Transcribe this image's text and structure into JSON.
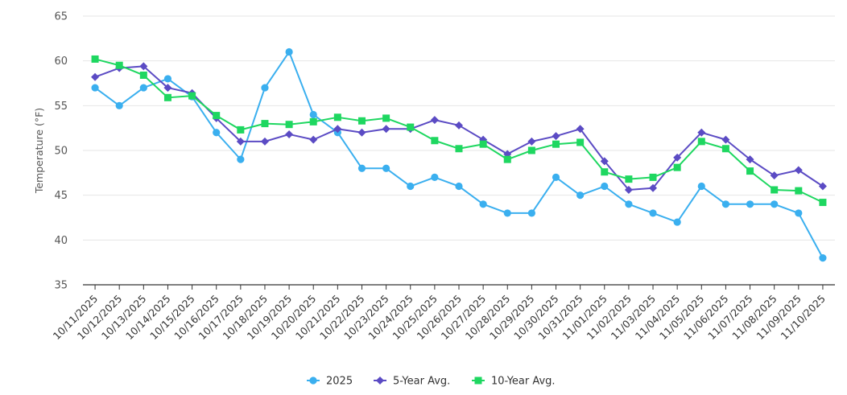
{
  "chart_data": {
    "type": "line",
    "title": "",
    "xlabel": "",
    "ylabel": "Temperature (°F)",
    "ylim": [
      35,
      65
    ],
    "yticks": [
      35,
      40,
      45,
      50,
      55,
      60,
      65
    ],
    "grid": true,
    "legend_position": "bottom-center",
    "categories": [
      "10/11/2025",
      "10/12/2025",
      "10/13/2025",
      "10/14/2025",
      "10/15/2025",
      "10/16/2025",
      "10/17/2025",
      "10/18/2025",
      "10/19/2025",
      "10/20/2025",
      "10/21/2025",
      "10/22/2025",
      "10/23/2025",
      "10/24/2025",
      "10/25/2025",
      "10/26/2025",
      "10/27/2025",
      "10/28/2025",
      "10/29/2025",
      "10/30/2025",
      "10/31/2025",
      "11/01/2025",
      "11/02/2025",
      "11/03/2025",
      "11/04/2025",
      "11/05/2025",
      "11/06/2025",
      "11/07/2025",
      "11/08/2025",
      "11/09/2025",
      "11/10/2025"
    ],
    "series": [
      {
        "name": "2025",
        "color": "#3AAFEF",
        "marker": "circle",
        "values": [
          57,
          55,
          57,
          58,
          56,
          52,
          49,
          57,
          61,
          54,
          52,
          48,
          48,
          46,
          47,
          46,
          44,
          43,
          43,
          47,
          45,
          46,
          44,
          43,
          42,
          46,
          44,
          44,
          44,
          43,
          38
        ]
      },
      {
        "name": "5-Year Avg.",
        "color": "#5B4BC4",
        "marker": "diamond",
        "values": [
          58.2,
          59.2,
          59.4,
          57.0,
          56.4,
          53.6,
          51.0,
          51.0,
          51.8,
          51.2,
          52.4,
          52.0,
          52.4,
          52.4,
          53.4,
          52.8,
          51.2,
          49.6,
          51.0,
          51.6,
          52.4,
          48.8,
          45.6,
          45.8,
          49.2,
          52.0,
          51.2,
          49.0,
          47.2,
          47.8,
          46.0
        ]
      },
      {
        "name": "10-Year Avg.",
        "color": "#1ED760",
        "marker": "square",
        "values": [
          60.2,
          59.5,
          58.4,
          55.9,
          56.1,
          53.9,
          52.3,
          53.0,
          52.9,
          53.2,
          53.7,
          53.3,
          53.6,
          52.6,
          51.1,
          50.2,
          50.7,
          49.0,
          50.0,
          50.7,
          50.9,
          47.6,
          46.8,
          47.0,
          48.1,
          51.0,
          50.2,
          47.7,
          45.6,
          45.5,
          44.2
        ]
      }
    ]
  }
}
